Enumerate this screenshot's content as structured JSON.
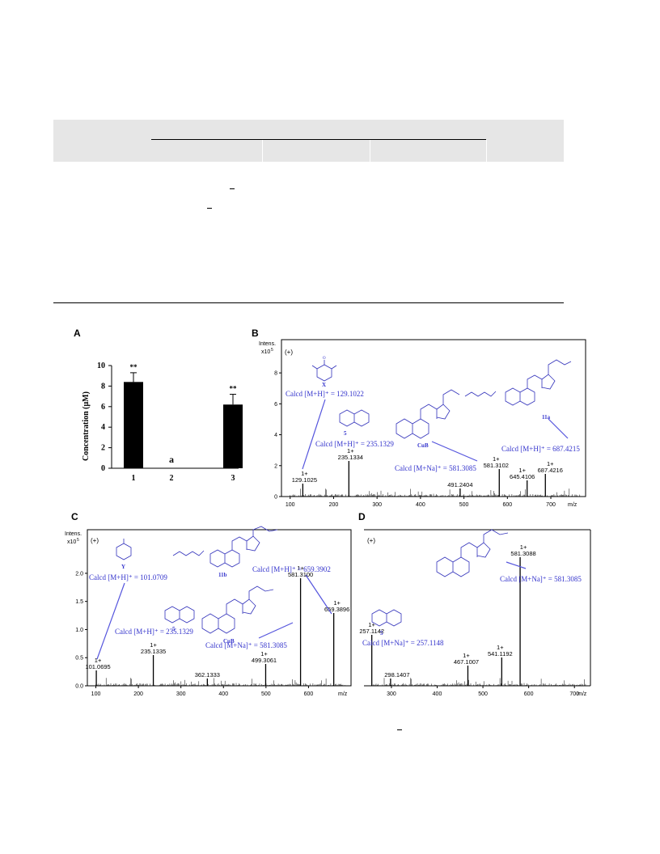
{
  "figure": {
    "panel_labels": [
      "A",
      "B",
      "C",
      "D"
    ]
  },
  "panelA": {
    "ylabel": "Concentration (μM)",
    "x_ticks": [
      "1",
      "2",
      "3"
    ],
    "y_ticks": [
      "0",
      "2",
      "4",
      "6",
      "8",
      "10"
    ],
    "significance": [
      "**",
      "a",
      "**"
    ]
  },
  "panelB": {
    "intens_label": "Intens.",
    "intens_scale": "x10",
    "intens_exp": "5",
    "mode": "(+)",
    "xunit": "m/z",
    "x_ticks": [
      "100",
      "200",
      "300",
      "400",
      "500",
      "600",
      "700"
    ],
    "y_ticks": [
      "0",
      "2",
      "4",
      "6",
      "8"
    ],
    "annotations": [
      "Calcd [M+H]⁺ = 129.1022",
      "Calcd [M+H]⁺ = 235.1329",
      "Calcd [M+Na]⁺ = 581.3085",
      "Calcd [M+H]⁺ = 687.4215"
    ],
    "structures": [
      "X",
      "5",
      "CuB",
      "11a"
    ],
    "peak_labels": [
      {
        "z": "1+",
        "mz": "129.1025"
      },
      {
        "z": "1+",
        "mz": "235.1334"
      },
      {
        "z": "",
        "mz": "491.2404"
      },
      {
        "z": "1+",
        "mz": "581.3102"
      },
      {
        "z": "1+",
        "mz": "645.4106"
      },
      {
        "z": "1+",
        "mz": "687.4216"
      }
    ]
  },
  "panelC": {
    "intens_label": "Intens.",
    "intens_scale": "x10",
    "intens_exp": "5",
    "mode": "(+)",
    "xunit": "m/z",
    "x_ticks": [
      "100",
      "200",
      "300",
      "400",
      "500",
      "600"
    ],
    "y_ticks": [
      "0.0",
      "0.5",
      "1.0",
      "1.5",
      "2.0"
    ],
    "annotations": [
      "Calcd [M+H]⁺ = 101.0709",
      "Calcd [M+H]⁺ = 235.1329",
      "Calcd [M+Na]⁺ = 581.3085",
      "Calcd [M+H]⁺ = 659.3902"
    ],
    "structures": [
      "Y",
      "5",
      "CuB",
      "11b"
    ],
    "peak_labels": [
      {
        "z": "1+",
        "mz": "101.0695"
      },
      {
        "z": "1+",
        "mz": "235.1335"
      },
      {
        "z": "",
        "mz": "362.1333"
      },
      {
        "z": "1+",
        "mz": "499.3061"
      },
      {
        "z": "1+",
        "mz": "581.3100"
      },
      {
        "z": "1+",
        "mz": "659.3896"
      }
    ]
  },
  "panelD": {
    "mode": "(+)",
    "xunit": "m/z",
    "x_ticks": [
      "300",
      "400",
      "500",
      "600",
      "700"
    ],
    "annotations": [
      "Calcd [M+Na]⁺ = 581.3085",
      "Calcd [M+Na]⁺ = 257.1148"
    ],
    "structures": [
      "5"
    ],
    "peak_labels": [
      {
        "z": "1+",
        "mz": "257.1142"
      },
      {
        "z": "",
        "mz": "298.1407"
      },
      {
        "z": "1+",
        "mz": "467.1007"
      },
      {
        "z": "1+",
        "mz": "541.1192"
      },
      {
        "z": "1+",
        "mz": "581.3088"
      }
    ]
  },
  "chart_data": [
    {
      "type": "bar",
      "categories": [
        "1",
        "2",
        "3"
      ],
      "values": [
        8.4,
        0,
        6.2
      ],
      "errors": [
        0.9,
        0,
        1.0
      ],
      "ylabel": "Concentration (μM)",
      "ylim": [
        0,
        10
      ],
      "colors": [
        "#000000"
      ]
    },
    {
      "type": "bar",
      "x": [
        129.1025,
        235.1334,
        491.2404,
        581.3102,
        645.4106,
        687.4216
      ],
      "y": [
        0.7,
        1.5,
        0.35,
        1.4,
        0.75,
        1.1
      ],
      "xlabel": "m/z",
      "xlim": [
        80,
        780
      ],
      "ylim": [
        0,
        9
      ]
    },
    {
      "type": "bar",
      "x": [
        101.0695,
        235.1335,
        362.1333,
        499.3061,
        581.31,
        659.3896
      ],
      "y": [
        0.1,
        0.55,
        0.12,
        0.3,
        1.7,
        1.1
      ],
      "xlabel": "m/z",
      "xlim": [
        80,
        700
      ],
      "ylim": [
        0,
        2.2
      ]
    },
    {
      "type": "bar",
      "x": [
        257.1142,
        298.1407,
        467.1007,
        541.1192,
        581.3088
      ],
      "xlabel": "m/z",
      "xlim": [
        240,
        735
      ]
    }
  ]
}
